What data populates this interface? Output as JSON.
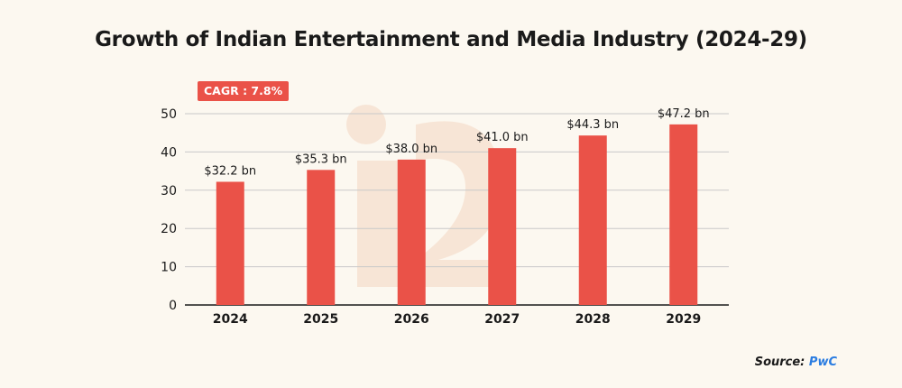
{
  "title": "Growth of Indian Entertainment and Media Industry (2024-29)",
  "badge": {
    "text": "CAGR : 7.8%"
  },
  "source": {
    "label": "Source:",
    "name": "PwC"
  },
  "colors": {
    "bar": "#ea5248",
    "badge": "#ea5248",
    "background": "#fcf8f0",
    "grid": "#c9c9c9",
    "source_name": "#2b7de1"
  },
  "chart_data": {
    "type": "bar",
    "categories": [
      "2024",
      "2025",
      "2026",
      "2027",
      "2028",
      "2029"
    ],
    "values": [
      32.2,
      35.3,
      38.0,
      41.0,
      44.3,
      47.2
    ],
    "data_labels": [
      "$32.2 bn",
      "$35.3 bn",
      "$38.0 bn",
      "$41.0 bn",
      "$44.3 bn",
      "$47.2 bn"
    ],
    "yticks": [
      0,
      10,
      20,
      30,
      40,
      50
    ],
    "ylim": [
      0,
      50
    ],
    "grid": true,
    "legend": "none"
  }
}
